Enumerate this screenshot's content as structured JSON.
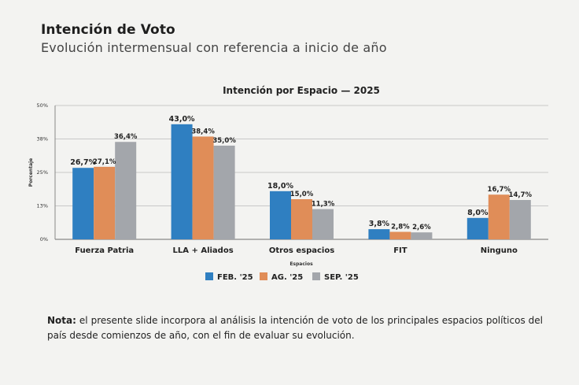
{
  "header": {
    "title": "Intención de Voto",
    "subtitle": "Evolución intermensual con referencia a inicio de año"
  },
  "note": {
    "label": "Nota:",
    "text": " el presente slide incorpora al análisis la intención de voto de los principales espacios políticos del país desde comienzos de año, con el fin de evaluar su evolución."
  },
  "chart_data": {
    "type": "bar",
    "title": "Intención por Espacio — 2025",
    "xlabel": "Espacios",
    "ylabel": "Porcentaje",
    "ylim": [
      0,
      50
    ],
    "yticks": [
      {
        "value": 0,
        "label": "0%"
      },
      {
        "value": 12.5,
        "label": "13%"
      },
      {
        "value": 25,
        "label": "25%"
      },
      {
        "value": 37.5,
        "label": "38%"
      },
      {
        "value": 50,
        "label": "50%"
      }
    ],
    "grid": true,
    "legend": "bottom",
    "categories": [
      "Fuerza Patria",
      "LLA + Aliados",
      "Otros espacios",
      "FIT",
      "Ninguno"
    ],
    "series": [
      {
        "name": "FEB. '25",
        "color": "#2f7fc1",
        "values": [
          26.7,
          43.0,
          18.0,
          3.8,
          8.0
        ],
        "labels": [
          "26,7%",
          "43,0%",
          "18,0%",
          "3,8%",
          "8,0%"
        ]
      },
      {
        "name": "AG. '25",
        "color": "#e08d58",
        "values": [
          27.1,
          38.4,
          15.0,
          2.8,
          16.7
        ],
        "labels": [
          "27,1%",
          "38,4%",
          "15,0%",
          "2,8%",
          "16,7%"
        ]
      },
      {
        "name": "SEP. '25",
        "color": "#a3a6ab",
        "values": [
          36.4,
          35.0,
          11.3,
          2.6,
          14.7
        ],
        "labels": [
          "36,4%",
          "35,0%",
          "11,3%",
          "2,6%",
          "14,7%"
        ]
      }
    ]
  }
}
